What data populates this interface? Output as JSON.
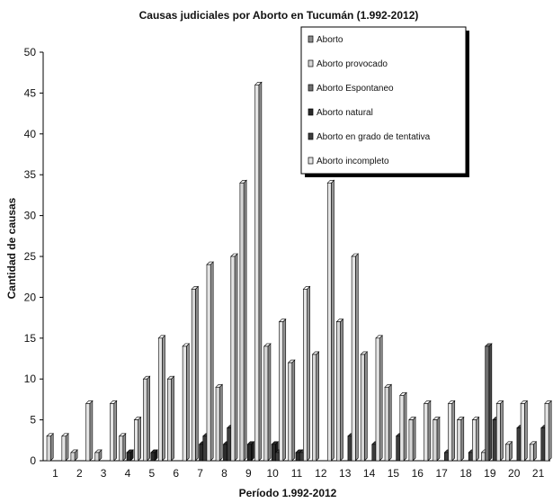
{
  "chart_data": {
    "type": "bar",
    "title": "Causas judiciales por Aborto en Tucumán (1.992-2012)",
    "xlabel": "Período 1.992-2012",
    "ylabel": "Cantidad de causas",
    "ylim": [
      0,
      50
    ],
    "yticks": [
      0,
      5,
      10,
      15,
      20,
      25,
      30,
      35,
      40,
      45,
      50
    ],
    "categories": [
      "1",
      "2",
      "3",
      "4",
      "5",
      "6",
      "7",
      "8",
      "9",
      "10",
      "11",
      "12",
      "13",
      "14",
      "15",
      "16",
      "17",
      "18",
      "19",
      "20",
      "21"
    ],
    "legend_position": "top-right",
    "grid": false,
    "series": [
      {
        "name": "Aborto",
        "color": "#8c8c8c",
        "values": [
          0,
          0,
          0,
          0,
          0,
          0,
          0,
          0,
          0,
          0,
          0,
          0,
          0,
          0,
          0,
          0,
          0,
          0,
          0,
          0,
          0
        ]
      },
      {
        "name": "Aborto provocado",
        "color": "#d6d6d6",
        "values": [
          3,
          1,
          1,
          3,
          10,
          10,
          21,
          9,
          34,
          14,
          12,
          13,
          17,
          13,
          9,
          5,
          5,
          5,
          1,
          2,
          2
        ]
      },
      {
        "name": "Aborto Espontaneo",
        "color": "#6f6f6f",
        "values": [
          0,
          0,
          0,
          0,
          0,
          0,
          0,
          0,
          0,
          0,
          0,
          0,
          0,
          0,
          0,
          0,
          0,
          0,
          14,
          0,
          0
        ]
      },
      {
        "name": "Aborto natural",
        "color": "#2a2a2a",
        "values": [
          0,
          0,
          0,
          1,
          1,
          0,
          2,
          2,
          2,
          2,
          1,
          0,
          0,
          0,
          0,
          0,
          0,
          0,
          0,
          0,
          0
        ]
      },
      {
        "name": "Aborto en grado de tentativa",
        "color": "#3d3d3d",
        "values": [
          0,
          0,
          0,
          0,
          0,
          0,
          3,
          4,
          0,
          1,
          1,
          0,
          3,
          2,
          3,
          0,
          1,
          1,
          5,
          4,
          4
        ]
      },
      {
        "name": "Aborto incompleto",
        "color": "#e4e4e4",
        "values": [
          3,
          7,
          7,
          5,
          15,
          14,
          24,
          25,
          46,
          17,
          21,
          34,
          25,
          15,
          8,
          7,
          7,
          5,
          7,
          7,
          7
        ]
      }
    ]
  }
}
